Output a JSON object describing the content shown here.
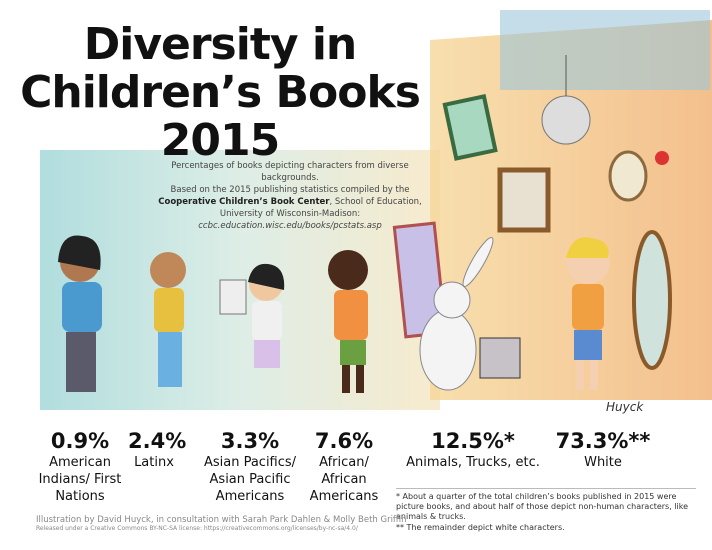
{
  "header": {
    "title_line1": "Diversity in",
    "title_line2": "Children’s Books",
    "title_year": "2015"
  },
  "description": {
    "line1": "Percentages of books depicting characters from diverse backgrounds.",
    "line2_start": "Based on the 2015 publishing statistics compiled by the ",
    "line2_bold": "Cooperative Children’s Book Center",
    "line2_end": ", School of Education, University of Wisconsin-Madison:",
    "url": "ccbc.education.wisc.edu/books/pcstats.asp"
  },
  "stats": [
    {
      "value": "0.9%",
      "label": "American Indians/ First Nations"
    },
    {
      "value": "2.4%",
      "label": "Latinx"
    },
    {
      "value": "3.3%",
      "label": "Asian Pacifics/ Asian Pacific Americans"
    },
    {
      "value": "7.6%",
      "label": "African/ African Americans"
    },
    {
      "value": "12.5%*",
      "label": "Animals, Trucks, etc."
    },
    {
      "value": "73.3%**",
      "label": "White"
    }
  ],
  "footnotes": [
    "* About a quarter of the total children’s books published in 2015 were picture books, and about half of those depict non-human characters, like animals & trucks.",
    "** The remainder depict white characters."
  ],
  "credits": {
    "illustration": "Illustration by David Huyck, in consultation with Sarah Park Dahlen & Molly Beth Griffin",
    "license": "Released under a Creative Commons BY-NC-SA license: https://creativecommons.org/licenses/by-nc-sa/4.0/"
  },
  "signature": "Huyck"
}
